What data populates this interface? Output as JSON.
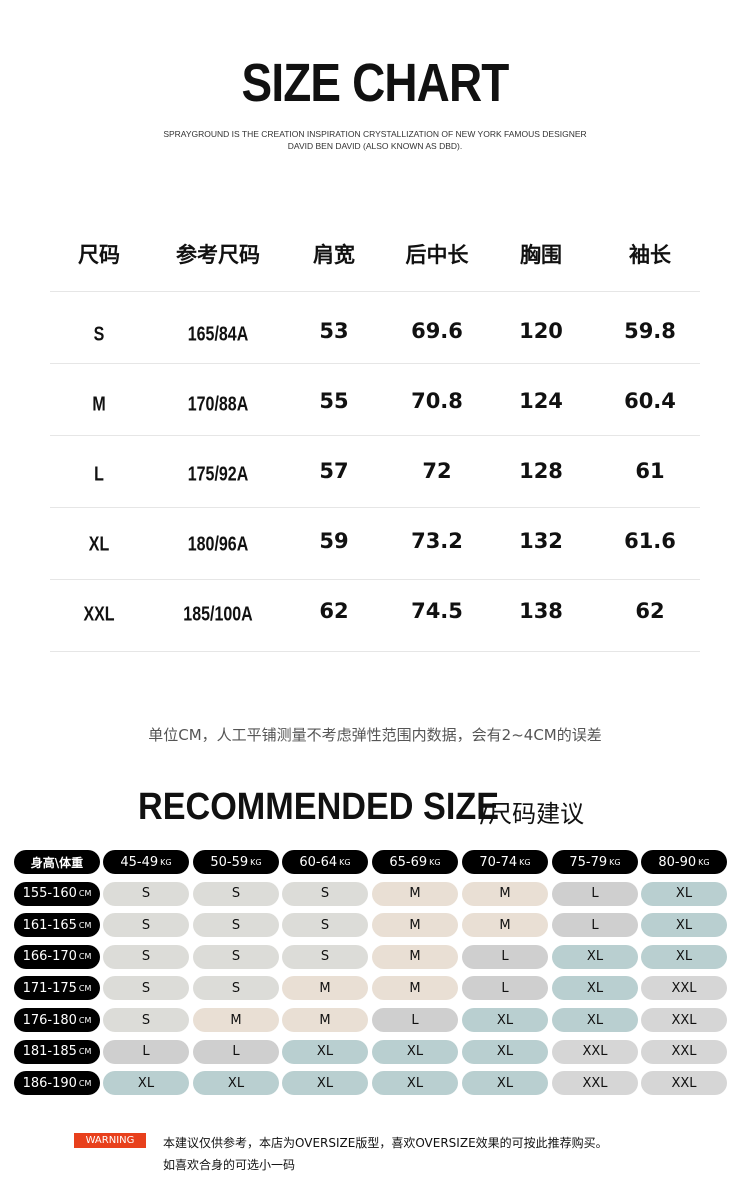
{
  "header": {
    "title": "SIZE CHART",
    "subtitle_line1": "SPRAYGROUND IS THE CREATION INSPIRATION CRYSTALLIZATION OF NEW YORK FAMOUS DESIGNER",
    "subtitle_line2": "DAVID BEN DAVID (ALSO KNOWN AS DBD)."
  },
  "size_table": {
    "columns": [
      "尺码",
      "参考尺码",
      "肩宽",
      "后中长",
      "胸围",
      "袖长"
    ],
    "rows": [
      [
        "S",
        "165/84A",
        "53",
        "69.6",
        "120",
        "59.8"
      ],
      [
        "M",
        "170/88A",
        "55",
        "70.8",
        "124",
        "60.4"
      ],
      [
        "L",
        "175/92A",
        "57",
        "72",
        "128",
        "61"
      ],
      [
        "XL",
        "180/96A",
        "59",
        "73.2",
        "132",
        "61.6"
      ],
      [
        "XXL",
        "185/100A",
        "62",
        "74.5",
        "138",
        "62"
      ]
    ]
  },
  "note": "单位CM，人工平铺测量不考虑弹性范围内数据，会有2~4CM的误差",
  "recommended": {
    "title": "RECOMMENDED SIZE",
    "title_cn": "/尺码建议",
    "corner": "身高\\体重",
    "weight_unit": "KG",
    "height_unit": "CM",
    "weights": [
      "45-49",
      "50-59",
      "60-64",
      "65-69",
      "70-74",
      "75-79",
      "80-90"
    ],
    "rows": [
      {
        "height": "155-160",
        "sizes": [
          "S",
          "S",
          "S",
          "M",
          "M",
          "L",
          "XL"
        ]
      },
      {
        "height": "161-165",
        "sizes": [
          "S",
          "S",
          "S",
          "M",
          "M",
          "L",
          "XL"
        ]
      },
      {
        "height": "166-170",
        "sizes": [
          "S",
          "S",
          "S",
          "M",
          "L",
          "XL",
          "XL"
        ]
      },
      {
        "height": "171-175",
        "sizes": [
          "S",
          "S",
          "M",
          "M",
          "L",
          "XL",
          "XXL"
        ]
      },
      {
        "height": "176-180",
        "sizes": [
          "S",
          "M",
          "M",
          "L",
          "XL",
          "XL",
          "XXL"
        ]
      },
      {
        "height": "181-185",
        "sizes": [
          "L",
          "L",
          "XL",
          "XL",
          "XL",
          "XXL",
          "XXL"
        ]
      },
      {
        "height": "186-190",
        "sizes": [
          "XL",
          "XL",
          "XL",
          "XL",
          "XL",
          "XXL",
          "XXL"
        ]
      }
    ],
    "size_colors": {
      "S": "#dcdcd8",
      "M": "#e9dfd4",
      "L": "#cfcfcf",
      "XL": "#b9cfd0",
      "XXL": "#d6d6d6"
    }
  },
  "warning": {
    "badge": "WARNING",
    "line1": "本建议仅供参考，本店为OVERSIZE版型，喜欢OVERSIZE效果的可按此推荐购买。",
    "line2": "如喜欢合身的可选小一码"
  }
}
